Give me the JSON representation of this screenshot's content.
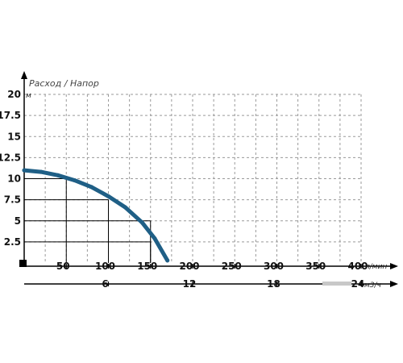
{
  "chart_data": {
    "type": "line",
    "title": "Расход / Напор",
    "y_unit": "м",
    "x_unit": "л/мин",
    "x2_unit": "м3/ч",
    "xlim": [
      0,
      400
    ],
    "ylim": [
      0,
      20
    ],
    "y_ticks": [
      "20",
      "17.5",
      "15",
      "12.5",
      "10",
      "7.5",
      "5",
      "2.5"
    ],
    "y_tick_values": [
      20,
      17.5,
      15,
      12.5,
      10,
      7.5,
      5,
      2.5
    ],
    "x_ticks": [
      "50",
      "100",
      "150",
      "200",
      "250",
      "300",
      "350",
      "400"
    ],
    "x_tick_values": [
      50,
      100,
      150,
      200,
      250,
      300,
      350,
      400
    ],
    "x2_ticks": [
      "6",
      "12",
      "18",
      "24"
    ],
    "x2_tick_values": [
      100,
      200,
      300,
      400
    ],
    "grid": true,
    "series": [
      {
        "color": "#1f5f86",
        "x": [
          0,
          20,
          40,
          60,
          80,
          100,
          120,
          140,
          155,
          170
        ],
        "y": [
          11,
          10.8,
          10.4,
          9.8,
          9.0,
          7.9,
          6.6,
          4.8,
          2.9,
          0.3
        ]
      }
    ],
    "reference_lines": [
      {
        "x": 50,
        "y": 10
      },
      {
        "x": 100,
        "y": 7.5
      },
      {
        "x": 150,
        "y": 5
      },
      {
        "x": 150,
        "y": 2.5
      }
    ]
  }
}
